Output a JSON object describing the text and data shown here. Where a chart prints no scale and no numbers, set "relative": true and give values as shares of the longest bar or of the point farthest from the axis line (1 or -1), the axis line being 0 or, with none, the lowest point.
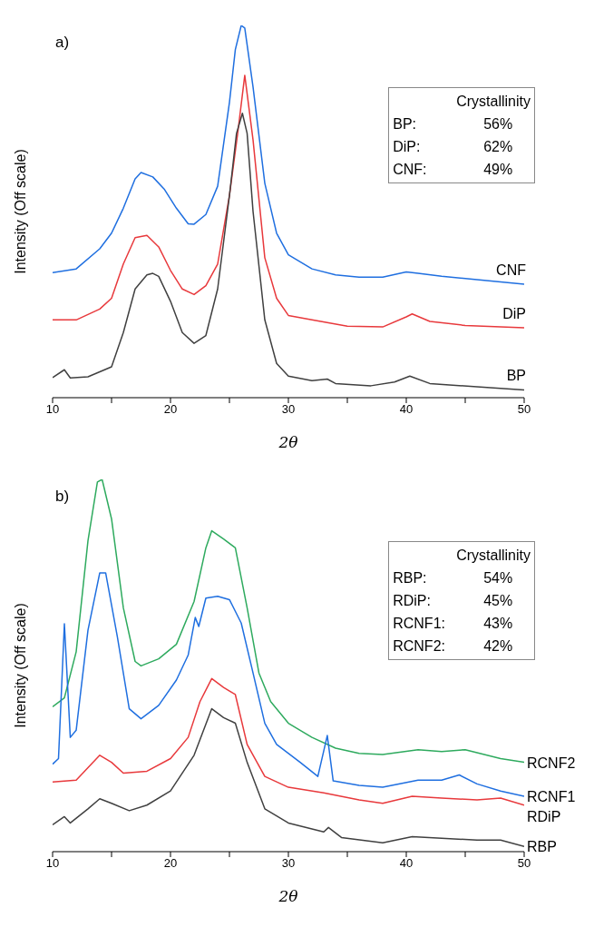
{
  "chart_data": [
    {
      "type": "line",
      "title": "a)",
      "xlabel": "2θ",
      "ylabel": "Intensity (Off scale)",
      "relative": true,
      "xlim": [
        10,
        50
      ],
      "xticks": [
        10,
        {
          "value": 15,
          "label": null
        },
        20,
        {
          "value": 25,
          "label": null
        },
        30,
        {
          "value": 35,
          "label": null
        },
        40,
        {
          "value": 45,
          "label": null
        },
        50
      ],
      "grid": false,
      "legend": false,
      "marker": "none",
      "line_style": "solid",
      "annotations": [
        "Crystallinity",
        "BP:",
        "56%",
        "DiP:",
        "62%",
        "CNF:",
        "49%"
      ],
      "series": [
        {
          "name": "CNF",
          "color": "#1f6fe0",
          "x": [
            10,
            12,
            14,
            15,
            16,
            17,
            17.5,
            18.5,
            19.5,
            20.5,
            21.5,
            22,
            23,
            24,
            25,
            25.5,
            26,
            26.3,
            27,
            28,
            29,
            30,
            32,
            34,
            36,
            38,
            40,
            41,
            43,
            46,
            50
          ],
          "values": [
            0.336,
            0.346,
            0.4,
            0.442,
            0.509,
            0.588,
            0.605,
            0.593,
            0.559,
            0.509,
            0.467,
            0.466,
            0.492,
            0.568,
            0.793,
            0.935,
            1,
            0.993,
            0.835,
            0.576,
            0.442,
            0.384,
            0.346,
            0.33,
            0.324,
            0.324,
            0.338,
            0.334,
            0.326,
            0.317,
            0.305
          ]
        },
        {
          "name": "DiP",
          "color": "#e8393c",
          "x": [
            10,
            12,
            14,
            15,
            16,
            17,
            18,
            19,
            20,
            21,
            22,
            23,
            24,
            25,
            25.7,
            26.3,
            27,
            28,
            29,
            30,
            32,
            35,
            38,
            40,
            40.5,
            42,
            45,
            50
          ],
          "values": [
            0.209,
            0.209,
            0.238,
            0.267,
            0.359,
            0.43,
            0.436,
            0.405,
            0.342,
            0.292,
            0.277,
            0.301,
            0.359,
            0.543,
            0.71,
            0.866,
            0.693,
            0.376,
            0.267,
            0.221,
            0.209,
            0.192,
            0.19,
            0.217,
            0.225,
            0.205,
            0.194,
            0.188
          ]
        },
        {
          "name": "BP",
          "color": "#404040",
          "x": [
            10,
            11,
            11.5,
            13,
            15,
            16,
            17,
            18,
            18.5,
            19,
            20,
            21,
            22,
            23,
            24,
            25,
            25.6,
            26.1,
            26.5,
            27,
            28,
            29,
            30,
            32,
            33.3,
            34,
            37,
            39,
            40.3,
            42,
            46,
            50
          ],
          "values": [
            0.054,
            0.075,
            0.053,
            0.056,
            0.083,
            0.175,
            0.292,
            0.33,
            0.334,
            0.326,
            0.259,
            0.175,
            0.146,
            0.167,
            0.292,
            0.543,
            0.71,
            0.764,
            0.71,
            0.501,
            0.209,
            0.092,
            0.058,
            0.046,
            0.05,
            0.038,
            0.032,
            0.042,
            0.058,
            0.038,
            0.029,
            0.021
          ]
        }
      ]
    },
    {
      "type": "line",
      "title": "b)",
      "xlabel": "2θ",
      "ylabel": "Intensity (Off scale)",
      "relative": true,
      "xlim": [
        10,
        50
      ],
      "xticks": [
        10,
        {
          "value": 15,
          "label": null
        },
        20,
        {
          "value": 25,
          "label": null
        },
        30,
        {
          "value": 35,
          "label": null
        },
        40,
        {
          "value": 45,
          "label": null
        },
        50
      ],
      "grid": false,
      "legend": false,
      "marker": "none",
      "line_style": "solid",
      "annotations": [
        "Crystallinity",
        "RBP:",
        "54%",
        "RDiP:",
        "45%",
        "RCNF1:",
        "43%",
        "RCNF2:",
        "42%"
      ],
      "series": [
        {
          "name": "RCNF2",
          "color": "#2eaa5e",
          "x": [
            10,
            11,
            12,
            13,
            13.8,
            14.2,
            15,
            16,
            17,
            17.5,
            19,
            20.5,
            22,
            23,
            23.5,
            24.5,
            25.5,
            26.5,
            27.5,
            28.5,
            30,
            32,
            34,
            36,
            38,
            41,
            43,
            45,
            48,
            50
          ],
          "values": [
            0.389,
            0.413,
            0.537,
            0.835,
            0.993,
            1,
            0.894,
            0.655,
            0.511,
            0.499,
            0.518,
            0.557,
            0.672,
            0.816,
            0.862,
            0.84,
            0.816,
            0.655,
            0.48,
            0.403,
            0.345,
            0.307,
            0.278,
            0.264,
            0.261,
            0.274,
            0.269,
            0.274,
            0.25,
            0.24
          ]
        },
        {
          "name": "RCNF1",
          "color": "#1f6fe0",
          "x": [
            10,
            10.5,
            11,
            11.5,
            12,
            13,
            14,
            14.5,
            15.5,
            16.5,
            17.5,
            19,
            20.5,
            21.5,
            22.1,
            22.4,
            23,
            24,
            25,
            26,
            27,
            28,
            29,
            31,
            32.5,
            33.3,
            33.8,
            36,
            38,
            41,
            43,
            44.5,
            46,
            48,
            50
          ],
          "values": [
            0.235,
            0.25,
            0.612,
            0.307,
            0.326,
            0.595,
            0.749,
            0.749,
            0.576,
            0.384,
            0.357,
            0.393,
            0.461,
            0.528,
            0.629,
            0.605,
            0.681,
            0.686,
            0.677,
            0.614,
            0.48,
            0.345,
            0.288,
            0.24,
            0.202,
            0.312,
            0.19,
            0.178,
            0.173,
            0.192,
            0.192,
            0.206,
            0.182,
            0.163,
            0.149
          ]
        },
        {
          "name": "RDiP",
          "color": "#e8393c",
          "x": [
            10,
            12,
            14,
            15,
            16,
            18,
            20,
            21.5,
            22.5,
            23.5,
            24.5,
            25.5,
            26.5,
            28,
            30,
            33,
            36,
            38,
            40.5,
            43,
            46,
            48,
            50
          ],
          "values": [
            0.187,
            0.192,
            0.259,
            0.24,
            0.211,
            0.216,
            0.25,
            0.307,
            0.403,
            0.465,
            0.441,
            0.422,
            0.288,
            0.202,
            0.173,
            0.158,
            0.139,
            0.13,
            0.149,
            0.144,
            0.139,
            0.144,
            0.125
          ]
        },
        {
          "name": "RBP",
          "color": "#404040",
          "x": [
            10,
            11,
            11.5,
            13,
            14,
            15,
            16.5,
            18,
            20,
            22,
            23.5,
            24.5,
            25.5,
            26.5,
            28,
            30,
            33,
            33.4,
            34.5,
            38,
            40.5,
            43,
            46,
            48,
            50
          ],
          "values": [
            0.072,
            0.094,
            0.077,
            0.115,
            0.142,
            0.13,
            0.11,
            0.125,
            0.163,
            0.259,
            0.384,
            0.36,
            0.345,
            0.24,
            0.115,
            0.077,
            0.053,
            0.065,
            0.038,
            0.024,
            0.04,
            0.036,
            0.031,
            0.031,
            0.014
          ]
        }
      ]
    }
  ]
}
